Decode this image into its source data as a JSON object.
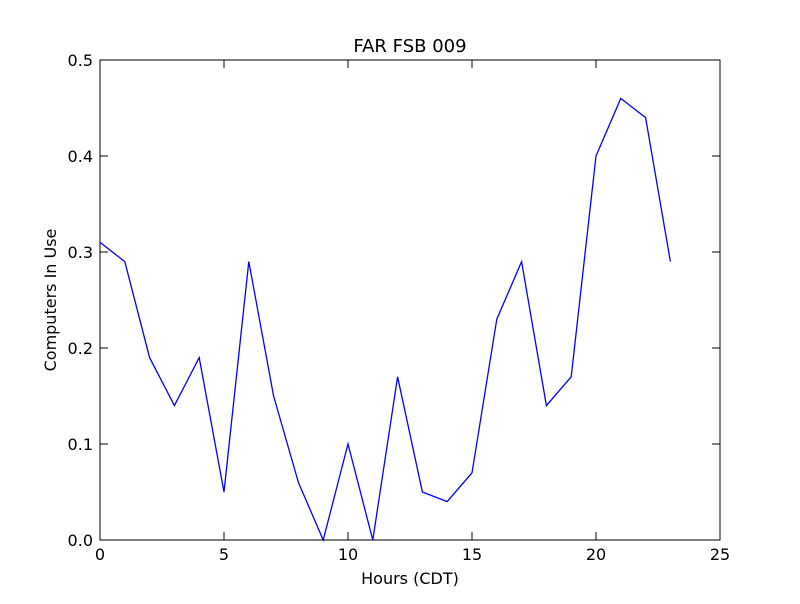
{
  "colors": {
    "series": "#0000ff",
    "axes": "#000000",
    "background": "#ffffff"
  },
  "chart_data": {
    "type": "line",
    "title": "FAR FSB 009",
    "xlabel": "Hours (CDT)",
    "ylabel": "Computers In Use",
    "xlim": [
      0,
      25
    ],
    "ylim": [
      0,
      0.5
    ],
    "grid": false,
    "x_ticks": [
      "0",
      "5",
      "10",
      "15",
      "20",
      "25"
    ],
    "y_ticks": [
      "0.0",
      "0.1",
      "0.2",
      "0.3",
      "0.4",
      "0.5"
    ],
    "x": [
      0,
      1,
      2,
      3,
      4,
      5,
      6,
      7,
      8,
      9,
      10,
      11,
      12,
      13,
      14,
      15,
      16,
      17,
      18,
      19,
      20,
      21,
      22,
      23
    ],
    "series": [
      {
        "values": [
          0.31,
          0.29,
          0.19,
          0.14,
          0.19,
          0.05,
          0.29,
          0.15,
          0.06,
          0.0,
          0.1,
          0.0,
          0.17,
          0.05,
          0.04,
          0.07,
          0.23,
          0.29,
          0.14,
          0.17,
          0.4,
          0.46,
          0.44,
          0.29
        ]
      }
    ]
  }
}
